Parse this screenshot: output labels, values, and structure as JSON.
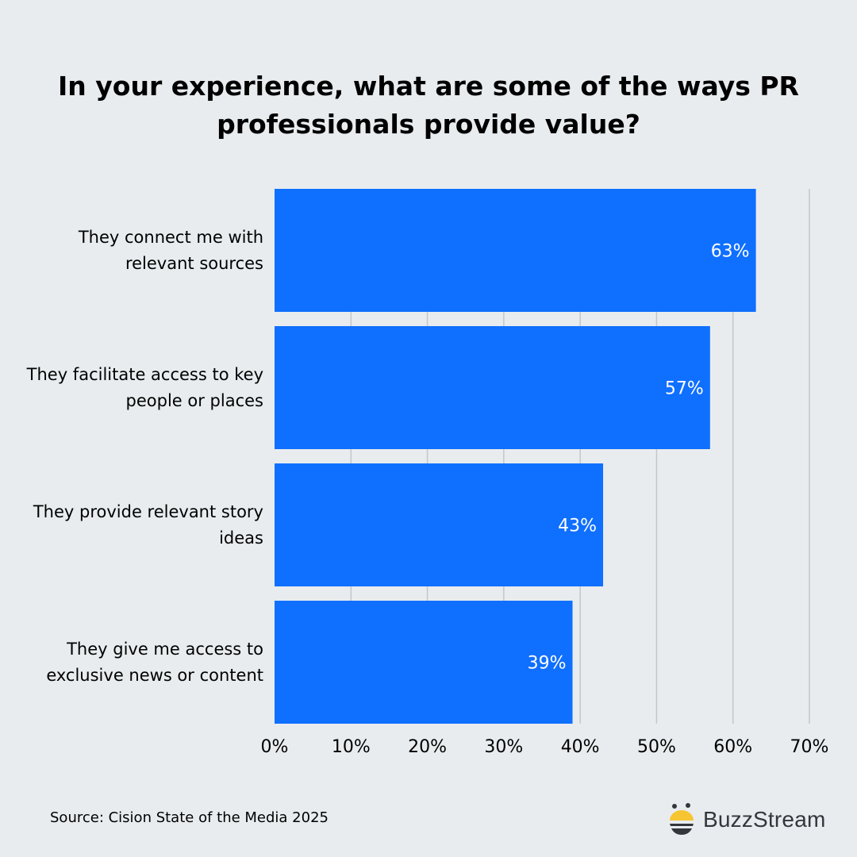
{
  "chart_data": {
    "type": "bar",
    "orientation": "horizontal",
    "title": "In your experience, what are some of the ways PR professionals provide value?",
    "categories": [
      "They connect me with relevant sources",
      "They facilitate access to key people or places",
      "They provide relevant story ideas",
      "They give me access to exclusive news or content"
    ],
    "values": [
      63,
      57,
      43,
      39
    ],
    "data_labels": [
      "63%",
      "57%",
      "43%",
      "39%"
    ],
    "xlim": [
      0,
      70
    ],
    "xticks": [
      0,
      10,
      20,
      30,
      40,
      50,
      60,
      70
    ],
    "xtick_labels": [
      "0%",
      "10%",
      "20%",
      "30%",
      "40%",
      "50%",
      "60%",
      "70%"
    ],
    "grid": "vertical",
    "bar_color": "#0f6fff",
    "xlabel": "",
    "ylabel": ""
  },
  "source": "Source: Cision State of the Media 2025",
  "logo": {
    "text": "BuzzStream",
    "icon": "bee-icon",
    "colors": {
      "yellow": "#f7c531",
      "dark": "#33363b"
    }
  },
  "colors": {
    "background": "#e8ecef",
    "grid": "#c4c7ca"
  }
}
